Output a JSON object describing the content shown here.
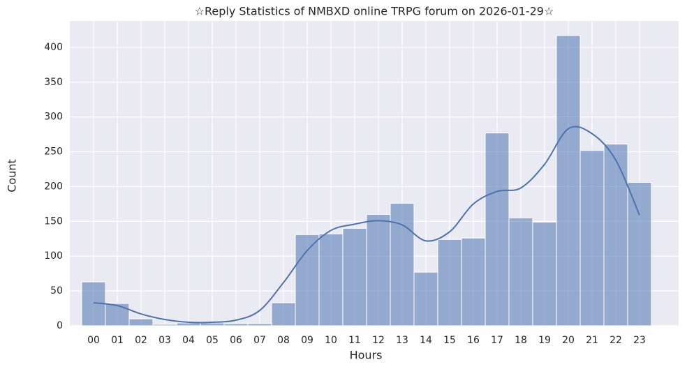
{
  "chart_data": {
    "type": "histogram",
    "title": "☆Reply Statistics of NMBXD online TRPG forum on 2026-01-29☆",
    "x_label": "Hours",
    "y_label": "Count",
    "categories": [
      "00",
      "01",
      "02",
      "03",
      "04",
      "05",
      "06",
      "07",
      "08",
      "09",
      "10",
      "11",
      "12",
      "13",
      "14",
      "15",
      "16",
      "17",
      "18",
      "19",
      "20",
      "21",
      "22",
      "23"
    ],
    "values": [
      63,
      32,
      10,
      2,
      4,
      4,
      3,
      3,
      33,
      131,
      132,
      140,
      160,
      176,
      77,
      124,
      126,
      277,
      155,
      149,
      417,
      252,
      261,
      206
    ],
    "kde_values": [
      33,
      29,
      17,
      9,
      5,
      5,
      8,
      22,
      62,
      108,
      137,
      146,
      151,
      145,
      122,
      135,
      175,
      193,
      198,
      232,
      283,
      276,
      238,
      159
    ],
    "color": "#4c72b0",
    "ylim": [
      0,
      438
    ],
    "yticks": [
      0,
      50,
      100,
      150,
      200,
      250,
      300,
      350,
      400
    ],
    "grid": true
  }
}
